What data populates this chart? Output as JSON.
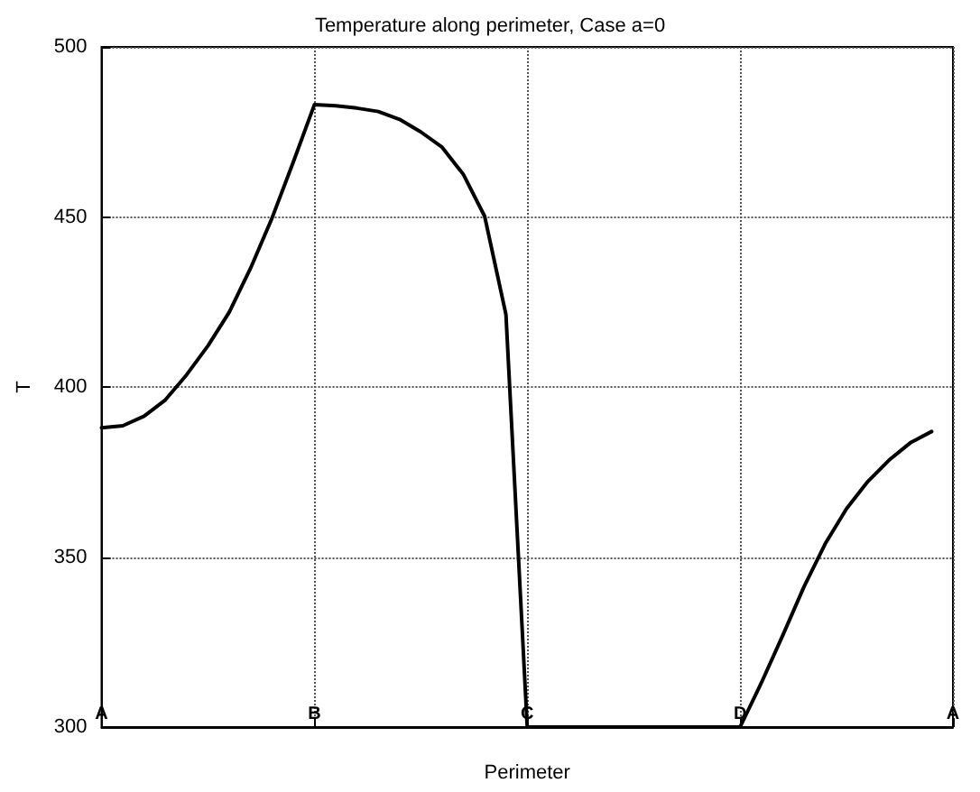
{
  "chart_data": {
    "type": "line",
    "title": "Temperature along perimeter, Case a=0",
    "xlabel": "Perimeter",
    "ylabel": "T",
    "categories": [
      "A",
      null,
      null,
      null,
      null,
      null,
      null,
      null,
      null,
      null,
      "B",
      null,
      null,
      null,
      null,
      null,
      null,
      null,
      null,
      null,
      "C",
      null,
      null,
      null,
      null,
      null,
      null,
      null,
      null,
      null,
      "D",
      null,
      null,
      null,
      null,
      null,
      null,
      null,
      null,
      null,
      "A"
    ],
    "series": [
      {
        "color": "#000000",
        "values": [
          388,
          388.6,
          391.4,
          396.2,
          403.6,
          412.1,
          422,
          434.9,
          449.5,
          466,
          483,
          482.7,
          482,
          481,
          478.7,
          475,
          470.5,
          462.5,
          450.2,
          421.3,
          300,
          300,
          300,
          300,
          300,
          300,
          300,
          300,
          300,
          300,
          300,
          313,
          326.9,
          341.2,
          353.9,
          364.2,
          372.2,
          378.5,
          383.6,
          386.9,
          null
        ]
      }
    ],
    "ylim": [
      300,
      500
    ],
    "yticks": [
      300,
      350,
      400,
      450,
      500
    ],
    "grid": true,
    "marker": "none",
    "line_style": "solid"
  }
}
